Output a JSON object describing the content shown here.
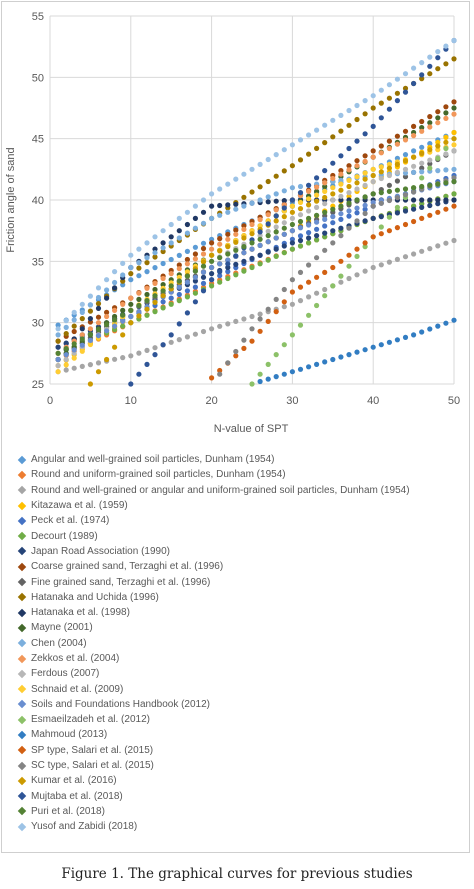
{
  "caption": "Figure 1. The graphical curves for previous studies",
  "chart_data": {
    "type": "scatter",
    "xlabel": "N-value of SPT",
    "ylabel": "Friction angle of sand",
    "xlim": [
      0,
      50
    ],
    "ylim": [
      25,
      55
    ],
    "xticks": [
      0,
      10,
      20,
      30,
      40,
      50
    ],
    "yticks": [
      25,
      30,
      35,
      40,
      45,
      50,
      55
    ],
    "grid": true,
    "legend_position": "bottom",
    "x_values": [
      1,
      2,
      3,
      4,
      5,
      6,
      7,
      8,
      9,
      10,
      11,
      12,
      13,
      14,
      15,
      16,
      17,
      18,
      19,
      20,
      21,
      22,
      23,
      24,
      25,
      26,
      27,
      28,
      29,
      30,
      31,
      32,
      33,
      34,
      35,
      36,
      37,
      38,
      39,
      40,
      41,
      42,
      43,
      44,
      45,
      46,
      47,
      48,
      49,
      50
    ],
    "series": [
      {
        "name": "Angular and well-grained soil particles, Dunham (1954)",
        "color": "#5b9bd5",
        "points": [
          [
            1,
            29.8
          ],
          [
            10,
            33.5
          ],
          [
            20,
            36.8
          ],
          [
            30,
            39.8
          ],
          [
            40,
            42.5
          ],
          [
            50,
            45.5
          ]
        ]
      },
      {
        "name": "Round and uniform-grained soil particles, Dunham (1954)",
        "color": "#ed7d31",
        "points": [
          [
            1,
            27.0
          ],
          [
            10,
            30.0
          ],
          [
            20,
            33.2
          ],
          [
            30,
            36.0
          ],
          [
            40,
            38.5
          ],
          [
            50,
            40.5
          ]
        ]
      },
      {
        "name": "Round and well-grained or angular and uniform-grained soil particles, Dunham (1954)",
        "color": "#a5a5a5",
        "points": [
          [
            1,
            26.0
          ],
          [
            10,
            27.3
          ],
          [
            20,
            29.5
          ],
          [
            30,
            31.5
          ],
          [
            40,
            34.5
          ],
          [
            50,
            36.7
          ]
        ]
      },
      {
        "name": "Kitazawa et al. (1959)",
        "color": "#ffc000",
        "points": [
          [
            1,
            26.5
          ],
          [
            10,
            30.5
          ],
          [
            20,
            34.5
          ],
          [
            30,
            37.5
          ],
          [
            40,
            41.5
          ],
          [
            50,
            45.5
          ]
        ]
      },
      {
        "name": "Peck et al. (1974)",
        "color": "#4472c4",
        "points": [
          [
            1,
            28.0
          ],
          [
            10,
            30.5
          ],
          [
            20,
            33.5
          ],
          [
            30,
            36.8
          ],
          [
            40,
            39.5
          ],
          [
            50,
            42.0
          ]
        ]
      },
      {
        "name": "Decourt (1989)",
        "color": "#70ad47",
        "points": [
          [
            1,
            27.5
          ],
          [
            10,
            30.0
          ],
          [
            20,
            33.0
          ],
          [
            30,
            36.0
          ],
          [
            40,
            38.5
          ],
          [
            50,
            40.5
          ]
        ]
      },
      {
        "name": "Japan Road Association (1990)",
        "color": "#264478",
        "points": [
          [
            1,
            28.0
          ],
          [
            10,
            31.0
          ],
          [
            20,
            34.0
          ],
          [
            30,
            36.5
          ],
          [
            40,
            38.5
          ],
          [
            50,
            40.0
          ]
        ]
      },
      {
        "name": "Coarse grained sand, Terzaghi et al. (1996)",
        "color": "#9e480e",
        "points": [
          [
            1,
            28.5
          ],
          [
            10,
            32.0
          ],
          [
            20,
            36.5
          ],
          [
            30,
            40.0
          ],
          [
            40,
            44.0
          ],
          [
            50,
            48.0
          ]
        ]
      },
      {
        "name": "Fine grained sand, Terzaghi et al. (1996)",
        "color": "#636363",
        "points": [
          [
            1,
            27.0
          ],
          [
            10,
            31.0
          ],
          [
            20,
            34.5
          ],
          [
            30,
            37.5
          ],
          [
            40,
            40.5
          ],
          [
            50,
            44.0
          ]
        ]
      },
      {
        "name": "Hatanaka and Uchida (1996)",
        "color": "#997300",
        "points": [
          [
            1,
            28.5
          ],
          [
            10,
            34.0
          ],
          [
            20,
            38.5
          ],
          [
            30,
            42.8
          ],
          [
            40,
            47.5
          ],
          [
            50,
            51.5
          ]
        ]
      },
      {
        "name": "Hatanaka et al. (1998)",
        "color": "#203864",
        "points": [
          [
            1,
            27.0
          ],
          [
            10,
            34.5
          ],
          [
            20,
            39.5
          ],
          [
            30,
            40.0
          ],
          [
            40,
            40.0
          ],
          [
            50,
            40.0
          ]
        ]
      },
      {
        "name": "Mayne (2001)",
        "color": "#43682b",
        "points": [
          [
            1,
            27.0
          ],
          [
            10,
            31.5
          ],
          [
            20,
            35.5
          ],
          [
            30,
            39.5
          ],
          [
            40,
            43.5
          ],
          [
            50,
            47.5
          ]
        ]
      },
      {
        "name": "Chen (2004)",
        "color": "#7cafdd",
        "points": [
          [
            1,
            29.0
          ],
          [
            10,
            34.5
          ],
          [
            20,
            38.5
          ],
          [
            30,
            41.0
          ],
          [
            40,
            42.0
          ],
          [
            50,
            42.5
          ]
        ]
      },
      {
        "name": "Zekkos et al. (2004)",
        "color": "#f1975a",
        "points": [
          [
            1,
            27.5
          ],
          [
            10,
            32.0
          ],
          [
            20,
            36.0
          ],
          [
            30,
            40.0
          ],
          [
            40,
            43.5
          ],
          [
            50,
            47.0
          ]
        ]
      },
      {
        "name": "Ferdous (2007)",
        "color": "#b7b7b7",
        "points": [
          [
            1,
            26.5
          ],
          [
            10,
            31.0
          ],
          [
            20,
            35.0
          ],
          [
            30,
            38.5
          ],
          [
            40,
            41.5
          ],
          [
            50,
            44.0
          ]
        ]
      },
      {
        "name": "Schnaid et al. (2009)",
        "color": "#ffcd33",
        "points": [
          [
            1,
            26.0
          ],
          [
            10,
            31.0
          ],
          [
            20,
            35.5
          ],
          [
            30,
            39.5
          ],
          [
            40,
            42.5
          ],
          [
            50,
            44.5
          ]
        ]
      },
      {
        "name": "Soils and Foundations Handbook (2012)",
        "color": "#698ed0",
        "points": [
          [
            1,
            27.0
          ],
          [
            10,
            30.5
          ],
          [
            20,
            34.5
          ],
          [
            30,
            37.5
          ],
          [
            40,
            39.8
          ],
          [
            50,
            41.5
          ]
        ]
      },
      {
        "name": "Esmaeilzadeh et al. (2012)",
        "color": "#8cc168",
        "points": [
          [
            25,
            25.0
          ],
          [
            30,
            29.0
          ],
          [
            35,
            33.0
          ],
          [
            40,
            37.0
          ],
          [
            45,
            41.0
          ],
          [
            50,
            45.0
          ]
        ]
      },
      {
        "name": "Mahmoud (2013)",
        "color": "#327dc2",
        "points": [
          [
            26,
            25.2
          ],
          [
            30,
            26.0
          ],
          [
            35,
            27.0
          ],
          [
            40,
            28.0
          ],
          [
            45,
            29.0
          ],
          [
            50,
            30.2
          ]
        ]
      },
      {
        "name": "SP type, Salari et al. (2015)",
        "color": "#d26012",
        "points": [
          [
            20,
            25.5
          ],
          [
            25,
            28.5
          ],
          [
            30,
            32.5
          ],
          [
            35,
            34.5
          ],
          [
            40,
            37.0
          ],
          [
            50,
            39.5
          ]
        ]
      },
      {
        "name": "SC type, Salari et al. (2015)",
        "color": "#848484",
        "points": [
          [
            21,
            25.8
          ],
          [
            25,
            29.5
          ],
          [
            30,
            33.5
          ],
          [
            35,
            36.5
          ],
          [
            40,
            39.5
          ],
          [
            50,
            41.8
          ]
        ]
      },
      {
        "name": "Kumar et al. (2016)",
        "color": "#cc9a00",
        "points": [
          [
            5,
            25.0
          ],
          [
            10,
            30.0
          ],
          [
            20,
            35.5
          ],
          [
            30,
            39.0
          ],
          [
            40,
            42.0
          ],
          [
            50,
            45.0
          ]
        ]
      },
      {
        "name": "Mujtaba et al. (2018)",
        "color": "#2f5597",
        "points": [
          [
            10,
            25.0
          ],
          [
            15,
            29.0
          ],
          [
            20,
            33.5
          ],
          [
            30,
            40.0
          ],
          [
            40,
            46.0
          ],
          [
            50,
            53.0
          ]
        ]
      },
      {
        "name": "Puri et al. (2018)",
        "color": "#548235",
        "points": [
          [
            1,
            27.5
          ],
          [
            10,
            31.0
          ],
          [
            20,
            35.0
          ],
          [
            30,
            38.0
          ],
          [
            40,
            40.5
          ],
          [
            50,
            41.5
          ]
        ]
      },
      {
        "name": "Yusof  and Zabidi (2018)",
        "color": "#9dc3e6",
        "points": [
          [
            1,
            29.5
          ],
          [
            10,
            35.5
          ],
          [
            20,
            40.5
          ],
          [
            30,
            44.5
          ],
          [
            40,
            48.5
          ],
          [
            50,
            53.0
          ]
        ]
      }
    ]
  }
}
